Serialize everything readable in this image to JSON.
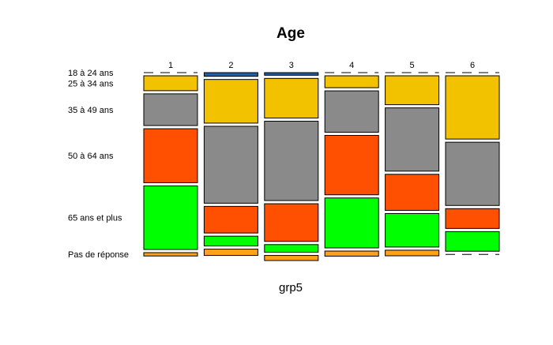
{
  "chart_data": {
    "type": "mosaic",
    "title": "Age",
    "xlabel": "grp5",
    "categories": [
      "1",
      "2",
      "3",
      "4",
      "5",
      "6"
    ],
    "column_widths": [
      0.151,
      0.151,
      0.151,
      0.151,
      0.151,
      0.151
    ],
    "row_categories": [
      "18 à 24 ans",
      "25 à 34 ans",
      "35 à 49 ans",
      "50 à 64 ans",
      "65 ans et plus",
      "Pas de réponse"
    ],
    "row_colors": [
      "#1f5fa8",
      "#f2c200",
      "#8a8a8a",
      "#ff4f00",
      "#00ff00",
      "#ffa21a"
    ],
    "proportions": [
      [
        0.0,
        0.085,
        0.181,
        0.308,
        0.363,
        0.019
      ],
      [
        0.021,
        0.249,
        0.439,
        0.152,
        0.056,
        0.036
      ],
      [
        0.015,
        0.226,
        0.453,
        0.215,
        0.044,
        0.029
      ],
      [
        0.0,
        0.068,
        0.236,
        0.339,
        0.285,
        0.029
      ],
      [
        0.0,
        0.165,
        0.361,
        0.206,
        0.191,
        0.032
      ],
      [
        0.0,
        0.361,
        0.361,
        0.113,
        0.112,
        0.0
      ]
    ]
  }
}
